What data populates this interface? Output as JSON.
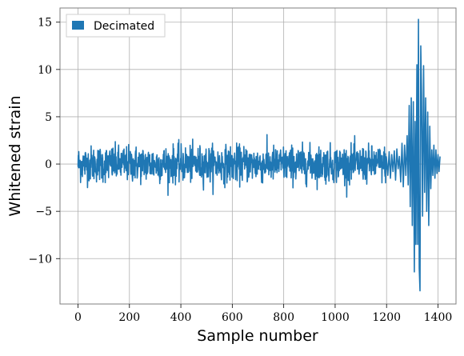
{
  "chart_data": {
    "type": "line",
    "title": "",
    "xlabel": "Sample number",
    "ylabel": "Whitened strain",
    "xlim": [
      -70,
      1470
    ],
    "ylim": [
      -14.8,
      16.5
    ],
    "xticks": [
      0,
      200,
      400,
      600,
      800,
      1000,
      1200,
      1400
    ],
    "yticks": [
      -10,
      -5,
      0,
      5,
      10,
      15
    ],
    "xtick_labels": [
      "0",
      "200",
      "400",
      "600",
      "800",
      "1000",
      "1200",
      "1400"
    ],
    "ytick_labels": [
      "−10",
      "−5",
      "0",
      "5",
      "10",
      "15"
    ],
    "grid": true,
    "legend_position": "top-left",
    "series": [
      {
        "name": "Decimated",
        "color": "#1f77b4",
        "noise_x_range": [
          0,
          1200
        ],
        "noise_amplitude_approx": 3.5,
        "points": [
          [
            1200,
            0.5
          ],
          [
            1205,
            -1.2
          ],
          [
            1210,
            1.3
          ],
          [
            1215,
            -1.5
          ],
          [
            1220,
            1.0
          ],
          [
            1225,
            -0.8
          ],
          [
            1230,
            1.4
          ],
          [
            1235,
            -1.7
          ],
          [
            1240,
            1.6
          ],
          [
            1245,
            -0.5
          ],
          [
            1250,
            0.8
          ],
          [
            1255,
            -1.9
          ],
          [
            1260,
            2.2
          ],
          [
            1265,
            -2.4
          ],
          [
            1270,
            2.0
          ],
          [
            1275,
            -1.2
          ],
          [
            1280,
            3.0
          ],
          [
            1284,
            -2.2
          ],
          [
            1288,
            6.2
          ],
          [
            1292,
            -4.5
          ],
          [
            1296,
            7.0
          ],
          [
            1300,
            -6.5
          ],
          [
            1304,
            6.6
          ],
          [
            1308,
            -11.4
          ],
          [
            1311,
            4.5
          ],
          [
            1314,
            -8.5
          ],
          [
            1318,
            10.5
          ],
          [
            1321,
            -8.5
          ],
          [
            1324,
            15.3
          ],
          [
            1327,
            -11.0
          ],
          [
            1330,
            -13.4
          ],
          [
            1333,
            12.5
          ],
          [
            1336,
            7.5
          ],
          [
            1340,
            -5.5
          ],
          [
            1344,
            10.4
          ],
          [
            1348,
            -3.0
          ],
          [
            1352,
            7.0
          ],
          [
            1356,
            -5.0
          ],
          [
            1360,
            5.5
          ],
          [
            1364,
            -6.5
          ],
          [
            1368,
            4.0
          ],
          [
            1372,
            -2.6
          ],
          [
            1376,
            1.5
          ],
          [
            1380,
            -1.2
          ],
          [
            1384,
            2.0
          ],
          [
            1388,
            -1.5
          ],
          [
            1392,
            1.5
          ],
          [
            1396,
            -1.0
          ],
          [
            1400,
            1.0
          ],
          [
            1404,
            -0.8
          ],
          [
            1408,
            0.8
          ]
        ]
      }
    ]
  }
}
